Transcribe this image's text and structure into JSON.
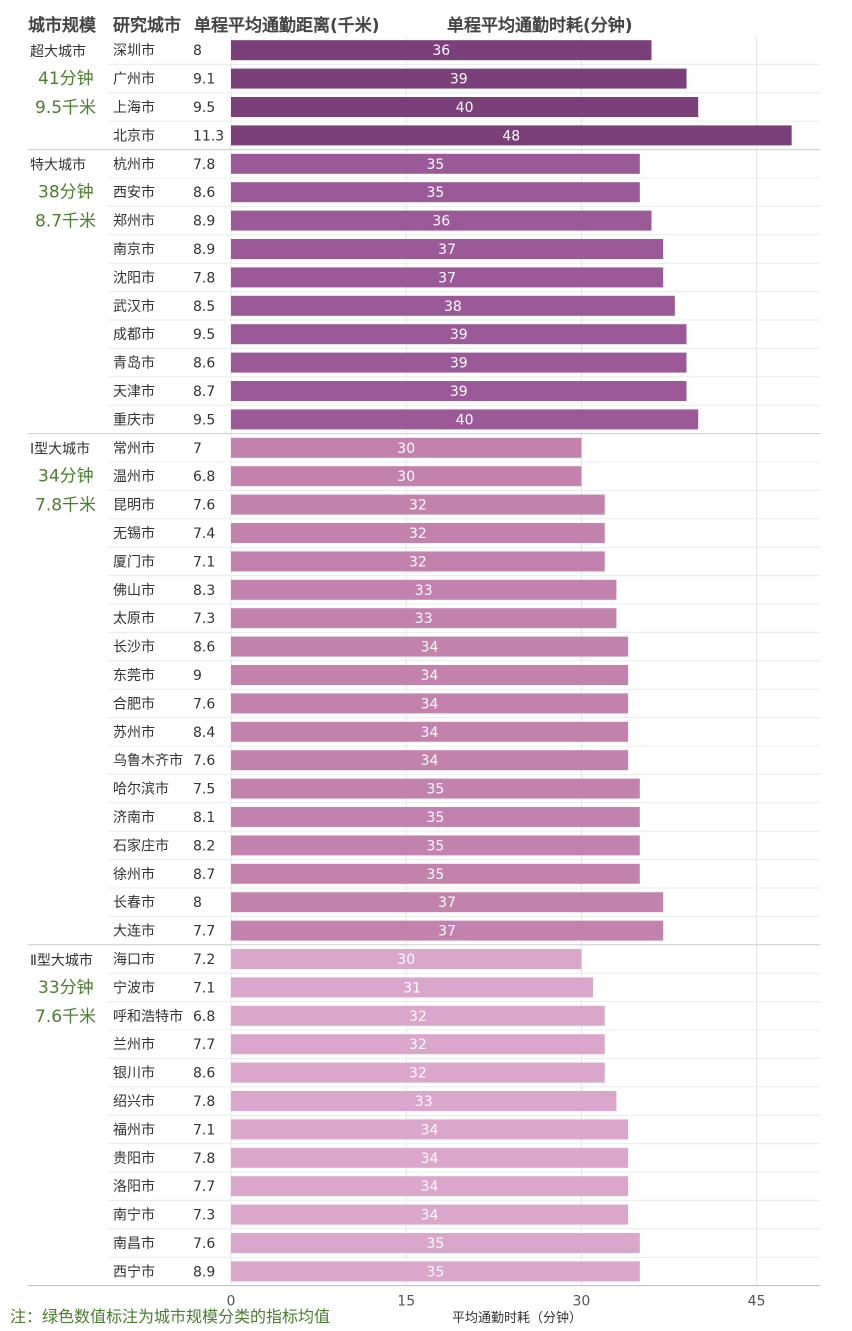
{
  "chart_data": {
    "type": "bar",
    "orientation": "horizontal",
    "headers": {
      "scale": "城市规模",
      "city": "研究城市",
      "distance": "单程平均通勤距离(千米)",
      "time": "单程平均通勤时耗(分钟)"
    },
    "xlabel": "平均通勤时耗（分钟）",
    "xlim": [
      0,
      50
    ],
    "xticks": [
      0,
      15,
      30,
      45
    ],
    "note": "注：绿色数值标注为城市规模分类的指标均值",
    "groups": [
      {
        "name": "超大城市",
        "avg_time": "41分钟",
        "avg_dist": "9.5千米",
        "color": "#7b3f7a",
        "cities": [
          {
            "city": "深圳市",
            "distance": "8",
            "time": 36
          },
          {
            "city": "广州市",
            "distance": "9.1",
            "time": 39
          },
          {
            "city": "上海市",
            "distance": "9.5",
            "time": 40
          },
          {
            "city": "北京市",
            "distance": "11.3",
            "time": 48
          }
        ]
      },
      {
        "name": "特大城市",
        "avg_time": "38分钟",
        "avg_dist": "8.7千米",
        "color": "#9b5a97",
        "cities": [
          {
            "city": "杭州市",
            "distance": "7.8",
            "time": 35
          },
          {
            "city": "西安市",
            "distance": "8.6",
            "time": 35
          },
          {
            "city": "郑州市",
            "distance": "8.9",
            "time": 36
          },
          {
            "city": "南京市",
            "distance": "8.9",
            "time": 37
          },
          {
            "city": "沈阳市",
            "distance": "7.8",
            "time": 37
          },
          {
            "city": "武汉市",
            "distance": "8.5",
            "time": 38
          },
          {
            "city": "成都市",
            "distance": "9.5",
            "time": 39
          },
          {
            "city": "青岛市",
            "distance": "8.6",
            "time": 39
          },
          {
            "city": "天津市",
            "distance": "8.7",
            "time": 39
          },
          {
            "city": "重庆市",
            "distance": "9.5",
            "time": 40
          }
        ]
      },
      {
        "name": "Ⅰ型大城市",
        "avg_time": "34分钟",
        "avg_dist": "7.8千米",
        "color": "#c382ae",
        "cities": [
          {
            "city": "常州市",
            "distance": "7",
            "time": 30
          },
          {
            "city": "温州市",
            "distance": "6.8",
            "time": 30
          },
          {
            "city": "昆明市",
            "distance": "7.6",
            "time": 32
          },
          {
            "city": "无锡市",
            "distance": "7.4",
            "time": 32
          },
          {
            "city": "厦门市",
            "distance": "7.1",
            "time": 32
          },
          {
            "city": "佛山市",
            "distance": "8.3",
            "time": 33
          },
          {
            "city": "太原市",
            "distance": "7.3",
            "time": 33
          },
          {
            "city": "长沙市",
            "distance": "8.6",
            "time": 34
          },
          {
            "city": "东莞市",
            "distance": "9",
            "time": 34
          },
          {
            "city": "合肥市",
            "distance": "7.6",
            "time": 34
          },
          {
            "city": "苏州市",
            "distance": "8.4",
            "time": 34
          },
          {
            "city": "乌鲁木齐市",
            "distance": "7.6",
            "time": 34
          },
          {
            "city": "哈尔滨市",
            "distance": "7.5",
            "time": 35
          },
          {
            "city": "济南市",
            "distance": "8.1",
            "time": 35
          },
          {
            "city": "石家庄市",
            "distance": "8.2",
            "time": 35
          },
          {
            "city": "徐州市",
            "distance": "8.7",
            "time": 35
          },
          {
            "city": "长春市",
            "distance": "8",
            "time": 37
          },
          {
            "city": "大连市",
            "distance": "7.7",
            "time": 37
          }
        ]
      },
      {
        "name": "Ⅱ型大城市",
        "avg_time": "33分钟",
        "avg_dist": "7.6千米",
        "color": "#dba6cb",
        "cities": [
          {
            "city": "海口市",
            "distance": "7.2",
            "time": 30
          },
          {
            "city": "宁波市",
            "distance": "7.1",
            "time": 31
          },
          {
            "city": "呼和浩特市",
            "distance": "6.8",
            "time": 32
          },
          {
            "city": "兰州市",
            "distance": "7.7",
            "time": 32
          },
          {
            "city": "银川市",
            "distance": "8.6",
            "time": 32
          },
          {
            "city": "绍兴市",
            "distance": "7.8",
            "time": 33
          },
          {
            "city": "福州市",
            "distance": "7.1",
            "time": 34
          },
          {
            "city": "贵阳市",
            "distance": "7.8",
            "time": 34
          },
          {
            "city": "洛阳市",
            "distance": "7.7",
            "time": 34
          },
          {
            "city": "南宁市",
            "distance": "7.3",
            "time": 34
          },
          {
            "city": "南昌市",
            "distance": "7.6",
            "time": 35
          },
          {
            "city": "西宁市",
            "distance": "8.9",
            "time": 35
          }
        ]
      }
    ]
  }
}
